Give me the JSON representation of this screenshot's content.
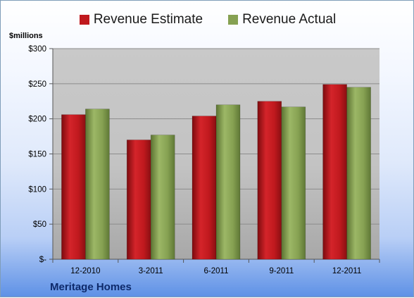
{
  "colors": {
    "estimate": "#c0191e",
    "actual": "#86a152",
    "plot_bg": "#c8c8c8",
    "grid": "#8c8c8c"
  },
  "company": "Meritage Homes",
  "chart_data": {
    "type": "bar",
    "ylabel": "$millions",
    "categories": [
      "12-2010",
      "3-2011",
      "6-2011",
      "9-2011",
      "12-2011"
    ],
    "series": [
      {
        "name": "Revenue Estimate",
        "values": [
          206,
          170,
          204,
          225,
          249
        ]
      },
      {
        "name": "Revenue Actual",
        "values": [
          214,
          177,
          220,
          217,
          245
        ]
      }
    ],
    "ylim": [
      0,
      300
    ],
    "yticks": [
      0,
      50,
      100,
      150,
      200,
      250,
      300
    ],
    "ytick_labels": [
      "$-",
      "$50",
      "$100",
      "$150",
      "$200",
      "$250",
      "$300"
    ],
    "grid": true,
    "legend_position": "top"
  }
}
